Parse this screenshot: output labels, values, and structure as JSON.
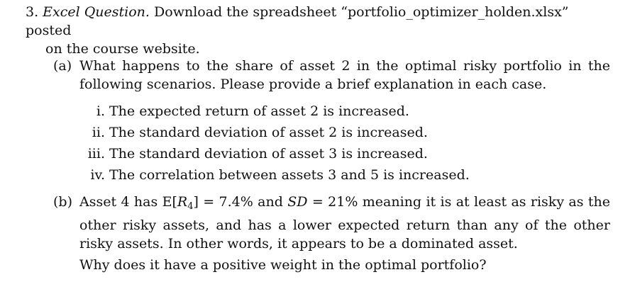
{
  "question": {
    "number": "3.",
    "title": "Excel Question.",
    "intro_line1": "Download the spreadsheet “portfolio_optimizer_holden.xlsx” posted",
    "intro_line2": "on the course website."
  },
  "part_a": {
    "label": "(a)",
    "text": "What happens to the share of asset 2 in the optimal risky portfolio in the following scenarios. Please provide a brief explanation in each case.",
    "items": [
      {
        "label": "i.",
        "text": "The expected return of asset 2 is increased."
      },
      {
        "label": "ii.",
        "text": "The standard deviation of asset 2 is increased."
      },
      {
        "label": "iii.",
        "text": "The standard deviation of asset 3 is increased."
      },
      {
        "label": "iv.",
        "text": "The correlation between assets 3 and 5 is increased."
      }
    ]
  },
  "part_b": {
    "label": "(b)",
    "text_pre": "Asset 4 has E[",
    "var_r": "R",
    "sub_4": "4",
    "text_mid1": "] = 7.4% and ",
    "var_sd": "SD",
    "text_mid2": " = 21% meaning it is at least as risky as the other risky assets, and has a lower expected return than any of the other risky assets. In other words, it appears to be a dominated asset.",
    "followup": "Why does it have a positive weight in the optimal portfolio?"
  }
}
